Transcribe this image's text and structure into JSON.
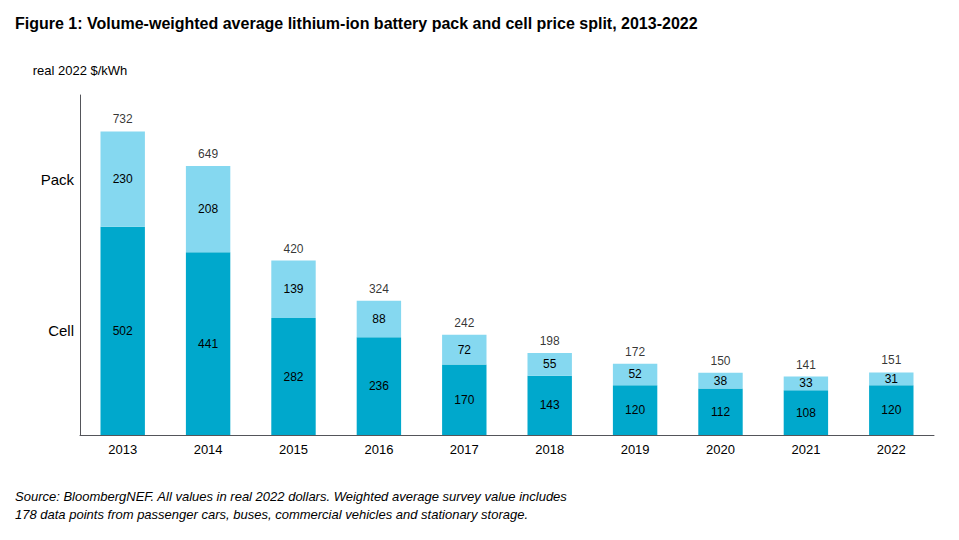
{
  "chart_data": {
    "type": "bar",
    "title": "Figure 1: Volume-weighted average lithium-ion battery pack and cell price split, 2013-2022",
    "ylabel": "real 2022 $/kWh",
    "categories": [
      "2013",
      "2014",
      "2015",
      "2016",
      "2017",
      "2018",
      "2019",
      "2020",
      "2021",
      "2022"
    ],
    "series": [
      {
        "name": "Cell",
        "color": "#00A8CC",
        "values": [
          502,
          441,
          282,
          236,
          170,
          143,
          120,
          112,
          108,
          120
        ]
      },
      {
        "name": "Pack",
        "color": "#85D8F0",
        "values": [
          230,
          208,
          139,
          88,
          72,
          55,
          52,
          38,
          33,
          31
        ]
      }
    ],
    "totals": [
      732,
      649,
      420,
      324,
      242,
      198,
      172,
      150,
      141,
      151
    ],
    "annotations": [
      "Source: BloombergNEF. All values in real 2022 dollars. Weighted average survey value includes\n178 data points from passenger cars, buses, commercial vehicles and stationary storage."
    ],
    "stacked": true,
    "data_labels": true,
    "ylim": [
      0,
      820
    ],
    "yticks": [],
    "grid": false,
    "tick_labels": "x"
  }
}
